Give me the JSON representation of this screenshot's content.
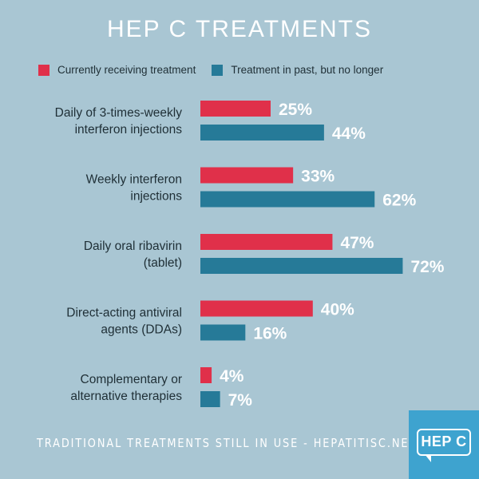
{
  "title": "HEP C TREATMENTS",
  "footer": "TRADITIONAL TREATMENTS STILL IN USE - HEPATITISC.NET",
  "logo_text": "HEP C",
  "colors": {
    "background": "#a9c6d3",
    "current": "#e0304a",
    "past": "#267a98",
    "logo": "#3ea3cf"
  },
  "chart_data": {
    "type": "bar",
    "orientation": "horizontal",
    "categories": [
      [
        "Daily of 3-times-weekly",
        "interferon injections"
      ],
      [
        "Weekly interferon",
        "injections"
      ],
      [
        "Daily oral ribavirin",
        "(tablet)"
      ],
      [
        "Direct-acting antiviral",
        "agents (DDAs)"
      ],
      [
        "Complementary or",
        "alternative therapies"
      ]
    ],
    "series": [
      {
        "name": "Currently receiving treatment",
        "color": "#e0304a",
        "values": [
          25,
          33,
          47,
          40,
          4
        ],
        "labels": [
          "25%",
          "33%",
          "47%",
          "40%",
          "4%"
        ]
      },
      {
        "name": "Treatment in past, but no longer",
        "color": "#267a98",
        "values": [
          44,
          62,
          72,
          16,
          7
        ],
        "labels": [
          "44%",
          "62%",
          "72%",
          "16%",
          "7%"
        ]
      }
    ],
    "xlim": [
      0,
      100
    ],
    "grid": false,
    "legend": "top"
  }
}
